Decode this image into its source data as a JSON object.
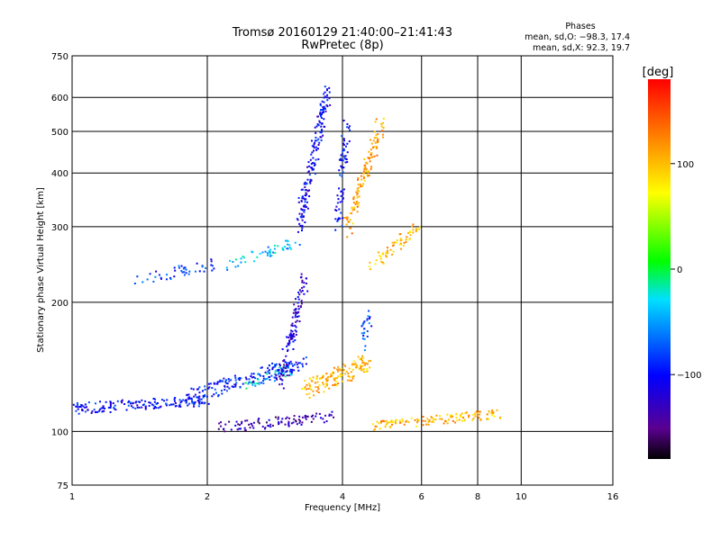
{
  "chart_data": {
    "type": "scatter",
    "title": "Tromsø 20160129 21:40:00–21:41:43",
    "subtitle": "RwPretec (8p)",
    "xlabel": "Frequency [MHz]",
    "ylabel": "Stationary phase Virtual Height [km]",
    "x_scale": "log",
    "y_scale": "log",
    "xlim": [
      1,
      16
    ],
    "ylim": [
      75,
      750
    ],
    "x_ticks": [
      1,
      2,
      4,
      6,
      8,
      10,
      16
    ],
    "x_tick_labels": [
      "1",
      "2",
      "4",
      "6",
      "8",
      "10",
      "16"
    ],
    "y_ticks": [
      75,
      100,
      200,
      300,
      400,
      500,
      600,
      750
    ],
    "y_tick_labels": [
      "75",
      "100",
      "200",
      "300",
      "400",
      "500",
      "600",
      "750"
    ],
    "grid": true,
    "phase_info": {
      "heading": "Phases",
      "line_o": "mean, sd,O: −98.3, 17.4",
      "line_x": "mean, sd,X:  92.3, 19.7"
    },
    "colorbar": {
      "label": "[deg]",
      "range": [
        -180,
        180
      ],
      "ticks": [
        100,
        0,
        -100
      ],
      "tick_labels": [
        "100",
        "0",
        "−100"
      ]
    },
    "traces": [
      {
        "x0": 1.0,
        "x1": 2.0,
        "h0": 113,
        "h1": 118,
        "n": 160,
        "spread": 0.03,
        "phase": -100
      },
      {
        "x0": 1.8,
        "x1": 3.3,
        "h0": 120,
        "h1": 145,
        "n": 170,
        "spread": 0.04,
        "phase": -95
      },
      {
        "x0": 2.4,
        "x1": 3.1,
        "h0": 128,
        "h1": 140,
        "n": 40,
        "spread": 0.03,
        "phase": -35
      },
      {
        "x0": 2.9,
        "x1": 3.3,
        "h0": 130,
        "h1": 225,
        "n": 120,
        "spread": 0.05,
        "phase": -120
      },
      {
        "x0": 3.3,
        "x1": 4.6,
        "h0": 125,
        "h1": 145,
        "n": 140,
        "spread": 0.05,
        "phase": 100
      },
      {
        "x0": 4.7,
        "x1": 9.0,
        "h0": 103,
        "h1": 110,
        "n": 130,
        "spread": 0.025,
        "phase": 105
      },
      {
        "x0": 2.1,
        "x1": 3.8,
        "h0": 102,
        "h1": 108,
        "n": 100,
        "spread": 0.03,
        "phase": -135
      },
      {
        "x0": 1.4,
        "x1": 2.1,
        "h0": 225,
        "h1": 245,
        "n": 45,
        "spread": 0.03,
        "phase": -85
      },
      {
        "x0": 2.2,
        "x1": 3.2,
        "h0": 245,
        "h1": 275,
        "n": 50,
        "spread": 0.03,
        "phase": -40
      },
      {
        "x0": 3.2,
        "x1": 3.7,
        "h0": 300,
        "h1": 620,
        "n": 170,
        "spread": 0.06,
        "phase": -105
      },
      {
        "x0": 3.9,
        "x1": 4.1,
        "h0": 300,
        "h1": 520,
        "n": 70,
        "spread": 0.04,
        "phase": -100
      },
      {
        "x0": 4.1,
        "x1": 4.9,
        "h0": 300,
        "h1": 520,
        "n": 120,
        "spread": 0.06,
        "phase": 110
      },
      {
        "x0": 4.6,
        "x1": 5.9,
        "h0": 240,
        "h1": 300,
        "n": 60,
        "spread": 0.04,
        "phase": 100
      },
      {
        "x0": 4.4,
        "x1": 4.6,
        "h0": 160,
        "h1": 190,
        "n": 25,
        "spread": 0.04,
        "phase": -80
      }
    ]
  }
}
